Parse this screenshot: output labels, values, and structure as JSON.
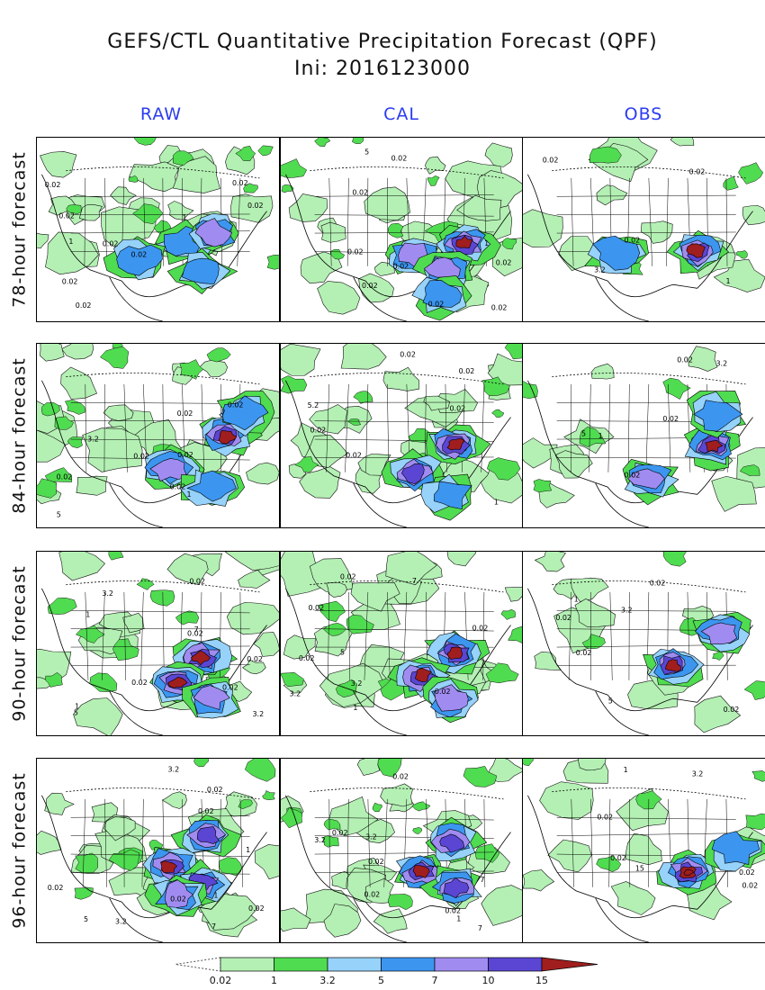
{
  "title_line1": "GEFS/CTL Quantitative Precipitation Forecast (QPF)",
  "title_line2": "Ini: 2016123000",
  "columns": [
    "RAW",
    "CAL",
    "OBS"
  ],
  "rows": [
    "78-hour forecast",
    "84-hour forecast",
    "90-hour forecast",
    "96-hour forecast"
  ],
  "chart_data": {
    "type": "heatmap",
    "title": "GEFS/CTL Quantitative Precipitation Forecast (QPF)",
    "subtitle": "Ini: 2016123000",
    "panel_columns": [
      "RAW",
      "CAL",
      "OBS"
    ],
    "panel_rows": [
      "78-hour forecast",
      "84-hour forecast",
      "90-hour forecast",
      "96-hour forecast"
    ],
    "colorbar": {
      "levels": [
        "0.02",
        "1",
        "3.2",
        "5",
        "7",
        "10",
        "15"
      ],
      "colors": [
        "#b4f0b4",
        "#50dc50",
        "#96d2fa",
        "#3c96f0",
        "#a08cf0",
        "#5a46d2",
        "#a01e1e"
      ],
      "extend": "both"
    },
    "panels": [
      {
        "row": 0,
        "col": 0,
        "labels": [
          "0.02",
          "0.02",
          "0.02",
          "0.02",
          "0.02",
          "0.02",
          "0.02",
          "0.02",
          "1",
          "1"
        ],
        "cores": [
          [
            0.62,
            0.58,
            3
          ],
          [
            0.42,
            0.66,
            3
          ],
          [
            0.73,
            0.52,
            4
          ],
          [
            0.68,
            0.72,
            3
          ]
        ]
      },
      {
        "row": 0,
        "col": 1,
        "labels": [
          "0.02",
          "0.02",
          "0.02",
          "0.02",
          "0.02",
          "0.02",
          "0.02",
          "0.02",
          "5",
          "1"
        ],
        "cores": [
          [
            0.76,
            0.58,
            6
          ],
          [
            0.55,
            0.64,
            4
          ],
          [
            0.68,
            0.72,
            4
          ],
          [
            0.66,
            0.86,
            3
          ]
        ]
      },
      {
        "row": 0,
        "col": 2,
        "labels": [
          "0.02",
          "0.02",
          "0.02",
          "3.2",
          "1"
        ],
        "cores": [
          [
            0.72,
            0.62,
            6
          ],
          [
            0.38,
            0.63,
            3
          ]
        ]
      },
      {
        "row": 1,
        "col": 0,
        "labels": [
          "0.02",
          "0.02",
          "0.02",
          "0.02",
          "0.02",
          "0.02",
          "3.2",
          "7",
          "5",
          "1"
        ],
        "cores": [
          [
            0.78,
            0.5,
            6
          ],
          [
            0.55,
            0.68,
            4
          ],
          [
            0.72,
            0.78,
            3
          ],
          [
            0.86,
            0.38,
            3
          ]
        ]
      },
      {
        "row": 1,
        "col": 1,
        "labels": [
          "0.02",
          "0.02",
          "0.02",
          "0.02",
          "0.02",
          "5.2",
          "1"
        ],
        "cores": [
          [
            0.72,
            0.55,
            6
          ],
          [
            0.55,
            0.7,
            5
          ],
          [
            0.7,
            0.82,
            3
          ]
        ]
      },
      {
        "row": 1,
        "col": 2,
        "labels": [
          "0.02",
          "0.02",
          "0.02",
          "3.2",
          "5",
          "1"
        ],
        "cores": [
          [
            0.78,
            0.55,
            6
          ],
          [
            0.52,
            0.74,
            4
          ],
          [
            0.8,
            0.38,
            3
          ]
        ]
      },
      {
        "row": 2,
        "col": 0,
        "labels": [
          "0.02",
          "0.02",
          "0.02",
          "0.02",
          "0.02",
          "3.2",
          "3.2",
          "5",
          "7",
          "1",
          "1"
        ],
        "cores": [
          [
            0.68,
            0.58,
            6
          ],
          [
            0.58,
            0.72,
            6
          ],
          [
            0.72,
            0.8,
            4
          ]
        ]
      },
      {
        "row": 2,
        "col": 1,
        "labels": [
          "0.02",
          "0.02",
          "0.02",
          "0.02",
          "0.02",
          "3.2",
          "3.2",
          "7",
          "5",
          "1"
        ],
        "cores": [
          [
            0.72,
            0.55,
            6
          ],
          [
            0.58,
            0.68,
            6
          ],
          [
            0.7,
            0.8,
            4
          ]
        ]
      },
      {
        "row": 2,
        "col": 2,
        "labels": [
          "0.02",
          "0.02",
          "0.02",
          "0.02",
          "3.2",
          "5",
          "1"
        ],
        "cores": [
          [
            0.62,
            0.62,
            6
          ],
          [
            0.82,
            0.44,
            4
          ]
        ]
      },
      {
        "row": 3,
        "col": 0,
        "labels": [
          "0.02",
          "0.02",
          "0.02",
          "0.02",
          "0.02",
          "3.2",
          "3.2",
          "5",
          "7",
          "1",
          "1"
        ],
        "cores": [
          [
            0.7,
            0.42,
            5
          ],
          [
            0.55,
            0.58,
            6
          ],
          [
            0.68,
            0.68,
            5
          ],
          [
            0.58,
            0.74,
            4
          ]
        ]
      },
      {
        "row": 3,
        "col": 1,
        "labels": [
          "0.02",
          "0.02",
          "0.02",
          "0.02",
          "0.02",
          "3.2",
          "3.2",
          "7",
          "7",
          "1"
        ],
        "cores": [
          [
            0.7,
            0.45,
            5
          ],
          [
            0.58,
            0.62,
            6
          ],
          [
            0.72,
            0.7,
            5
          ]
        ]
      },
      {
        "row": 3,
        "col": 2,
        "labels": [
          "0.02",
          "0.02",
          "0.02",
          "0.02",
          "15",
          "3.2",
          "1"
        ],
        "cores": [
          [
            0.68,
            0.62,
            7
          ],
          [
            0.88,
            0.5,
            3
          ]
        ]
      }
    ]
  }
}
